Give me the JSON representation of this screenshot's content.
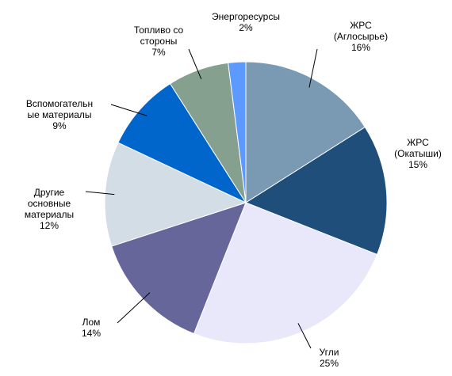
{
  "chart_data": {
    "type": "pie",
    "categories": [
      "ЖРС\n(Аглосырье)",
      "ЖРС\n(Окатыши)",
      "Угли",
      "Лом",
      "Другие\nосновные\nматериалы",
      "Вспомогательн\nые материалы",
      "Топливо со\nстороны",
      "Энергоресурсы"
    ],
    "values": [
      16,
      15,
      25,
      14,
      12,
      9,
      7,
      2
    ],
    "value_labels": [
      "16%",
      "15%",
      "25%",
      "14%",
      "12%",
      "9%",
      "7%",
      "2%"
    ],
    "colors": [
      "#7a9ab3",
      "#1f4e7a",
      "#e8e8fa",
      "#67669a",
      "#d3dde6",
      "#0066cc",
      "#86a090",
      "#5c9aff"
    ]
  }
}
